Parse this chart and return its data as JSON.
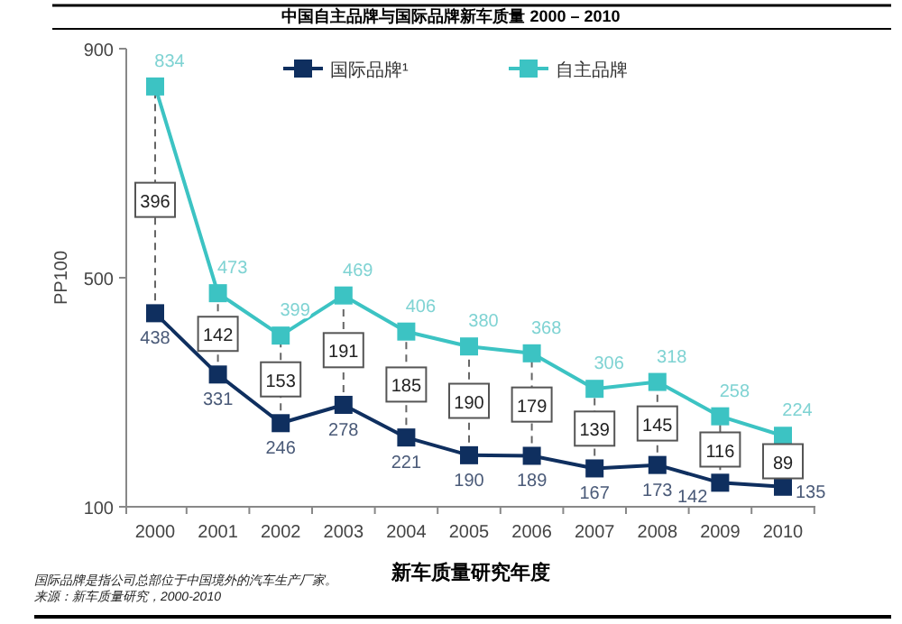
{
  "chart_data": {
    "type": "line",
    "title": "中国自主品牌与国际品牌新车质量 2000 – 2010",
    "xlabel": "新车质量研究年度",
    "ylabel": "PP100",
    "categories": [
      "2000",
      "2001",
      "2002",
      "2003",
      "2004",
      "2005",
      "2006",
      "2007",
      "2008",
      "2009",
      "2010"
    ],
    "series": [
      {
        "name": "国际品牌¹",
        "color": "#0f2f5f",
        "values": [
          438,
          331,
          246,
          278,
          221,
          190,
          189,
          167,
          173,
          142,
          135
        ]
      },
      {
        "name": "自主品牌",
        "color": "#3cc3c3",
        "values": [
          834,
          473,
          399,
          469,
          406,
          380,
          368,
          306,
          318,
          258,
          224
        ]
      }
    ],
    "ylim": [
      100,
      900
    ],
    "yticks": [
      100,
      500,
      900
    ],
    "grid": false,
    "legend": "top",
    "marker": "square",
    "line_style": "solid",
    "data_labels": true,
    "annotations": [
      {
        "text": "396",
        "x": "2000",
        "y": 636
      },
      {
        "text": "142",
        "x": "2001",
        "y": 402
      },
      {
        "text": "153",
        "x": "2002",
        "y": 322.5
      },
      {
        "text": "191",
        "x": "2003",
        "y": 373.5
      },
      {
        "text": "185",
        "x": "2004",
        "y": 313.5
      },
      {
        "text": "190",
        "x": "2005",
        "y": 285
      },
      {
        "text": "179",
        "x": "2006",
        "y": 278.5
      },
      {
        "text": "139",
        "x": "2007",
        "y": 236.5
      },
      {
        "text": "145",
        "x": "2008",
        "y": 245.5
      },
      {
        "text": "116",
        "x": "2009",
        "y": 200
      },
      {
        "text": "89",
        "x": "2010",
        "y": 179.5
      },
      "国际品牌是指公司总部位于中国境外的汽车生产厂家。",
      "来源：新车质量研究，2000-2010"
    ]
  }
}
